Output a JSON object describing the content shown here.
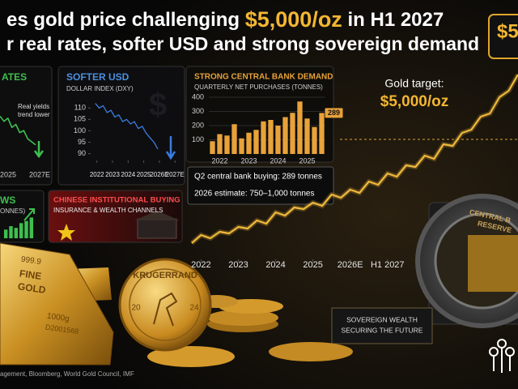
{
  "header": {
    "title_parts": [
      "es gold price challenging",
      "$5,000/oz",
      "in H1 2027"
    ],
    "subtitle": "r real rates, softer USD and strong sovereign demand",
    "badge": "$5"
  },
  "chart_data": [
    {
      "type": "line",
      "title": "ATES",
      "annotation": [
        "Real yields",
        "trend lower"
      ],
      "xlabels": [
        "2025",
        "2027E"
      ],
      "values": [
        8,
        7.5,
        7.8,
        6.9,
        7.2,
        6.4,
        6.6,
        5.8,
        5.5,
        5.2
      ],
      "ylim": [
        4,
        10
      ],
      "color": "#3fbf4f"
    },
    {
      "type": "line",
      "title": "SOFTER USD",
      "subtitle": "DOLLAR INDEX (DXY)",
      "x": [
        2021.9,
        2022.15,
        2022.4,
        2022.65,
        2022.9,
        2023.15,
        2023.4,
        2023.65,
        2023.9,
        2024.15,
        2024.4,
        2024.65,
        2024.9,
        2025.15,
        2025.4,
        2025.65,
        2025.9
      ],
      "values": [
        112,
        110,
        111,
        108,
        109,
        106,
        107,
        104,
        105,
        103,
        104,
        101,
        102,
        99,
        97,
        95,
        92
      ],
      "xlim": [
        2021.6,
        2027.3
      ],
      "xticks": [
        2022,
        2023,
        2024,
        2025,
        {
          "value": 2026,
          "label": "2026E"
        },
        {
          "value": 2027,
          "label": "2027E"
        }
      ],
      "ylim": [
        87,
        114
      ],
      "yticks": [
        90,
        95,
        100,
        105,
        110
      ],
      "color": "#3b7de0"
    },
    {
      "type": "bar",
      "title": "STRONG CENTRAL BANK DEMAND",
      "subtitle": "QUARTERLY NET PURCHASES (TONNES)",
      "categories": [
        null,
        "2022",
        null,
        null,
        null,
        "2023",
        null,
        null,
        null,
        "2024",
        null,
        null,
        null,
        "2025",
        null,
        null
      ],
      "values": [
        90,
        140,
        130,
        210,
        110,
        150,
        170,
        230,
        240,
        200,
        260,
        290,
        370,
        250,
        190,
        289
      ],
      "value_labels": [
        null,
        null,
        null,
        null,
        null,
        null,
        null,
        null,
        null,
        null,
        null,
        null,
        null,
        null,
        null,
        "289"
      ],
      "ylim": [
        0,
        400
      ],
      "yticks": [
        100,
        200,
        300,
        400
      ],
      "color": "#e8a23a",
      "notes": [
        "Q2 central bank buying: 289 tonnes",
        "2026 estimate: 750–1,000 tonnes"
      ]
    },
    {
      "type": "line",
      "target_label": "Gold target:",
      "target": {
        "value": 5000,
        "label": "$5,000/oz"
      },
      "x": [
        2021.75,
        2022,
        2022.25,
        2022.5,
        2022.75,
        2023,
        2023.25,
        2023.5,
        2023.75,
        2024,
        2024.25,
        2024.5,
        2024.75,
        2025,
        2025.25,
        2025.5,
        2025.75,
        2026,
        2026.25,
        2026.5,
        2026.75,
        2027,
        2027.25,
        2027.5,
        2027.75,
        2028,
        2028.25,
        2028.5,
        2028.75,
        2029,
        2029.25,
        2029.5,
        2029.75,
        2030,
        2030.25,
        2030.5
      ],
      "values": [
        1800,
        2050,
        1950,
        2150,
        2100,
        2300,
        2250,
        2500,
        2400,
        2750,
        2650,
        2900,
        2850,
        3050,
        2950,
        3300,
        3200,
        3450,
        3350,
        3700,
        3600,
        3950,
        3850,
        4200,
        4150,
        4500,
        4400,
        4850,
        4800,
        5200,
        5300,
        5700,
        5800,
        6300,
        6500,
        7000
      ],
      "xlim": [
        2021.6,
        2030.5
      ],
      "xticks": [
        2022,
        2023,
        2024,
        2025,
        {
          "value": 2026,
          "label": "2026E"
        },
        {
          "value": 2027,
          "label": "H1 2027"
        }
      ],
      "ylim": [
        1300,
        7800
      ],
      "color": "#f0b93a"
    },
    {
      "type": "bar",
      "title": "WS",
      "subtitle": "ONNES)",
      "values": [
        20,
        28,
        24,
        35,
        40,
        48
      ],
      "ylim": [
        0,
        60
      ],
      "color": "#3fbf4f"
    }
  ],
  "china_panel": {
    "title": "CHINESE INSTITUTIONAL BUYING",
    "subtitle": "INSURANCE & WEALTH CHANNELS"
  },
  "gold_bar": [
    "999.9",
    "FINE",
    "GOLD",
    "1000g",
    "D2001568"
  ],
  "coin": {
    "name": "KRUGERRAND",
    "left": "20",
    "right": "24"
  },
  "vault": [
    "CENTRAL B",
    "RESERVE"
  ],
  "plaque": [
    "SOVEREIGN WEALTH",
    "SECURING THE FUTURE"
  ],
  "source": "agement, Bloomberg, World Gold Council, IMF"
}
